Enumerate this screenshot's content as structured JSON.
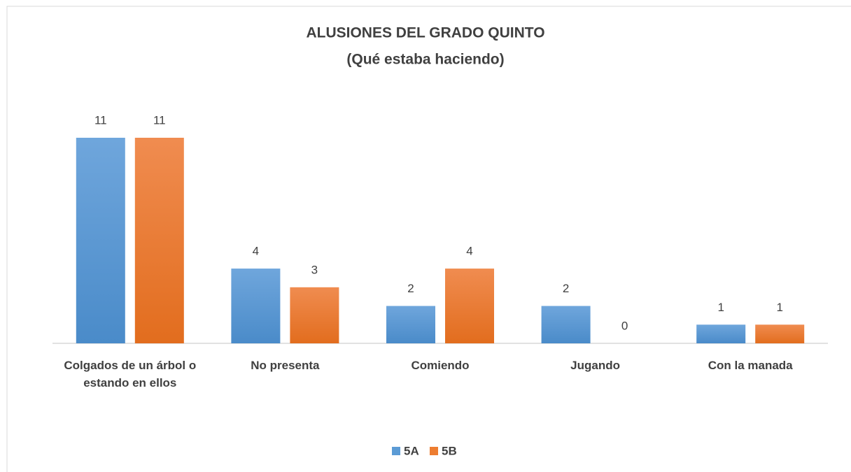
{
  "chart_data": {
    "type": "bar",
    "title": [
      "ALUSIONES DEL GRADO QUINTO",
      "(Qué estaba haciendo)"
    ],
    "categories": [
      "Colgados de un árbol o estando en ellos",
      "No presenta",
      "Comiendo",
      "Jugando",
      "Con la manada"
    ],
    "series": [
      {
        "name": "5A",
        "color": "#5b9bd5",
        "values": [
          11,
          4,
          2,
          2,
          1
        ]
      },
      {
        "name": "5B",
        "color": "#ed7d31",
        "values": [
          11,
          3,
          4,
          0,
          1
        ]
      }
    ],
    "ylim": [
      0,
      11
    ],
    "legend": "bottom"
  }
}
